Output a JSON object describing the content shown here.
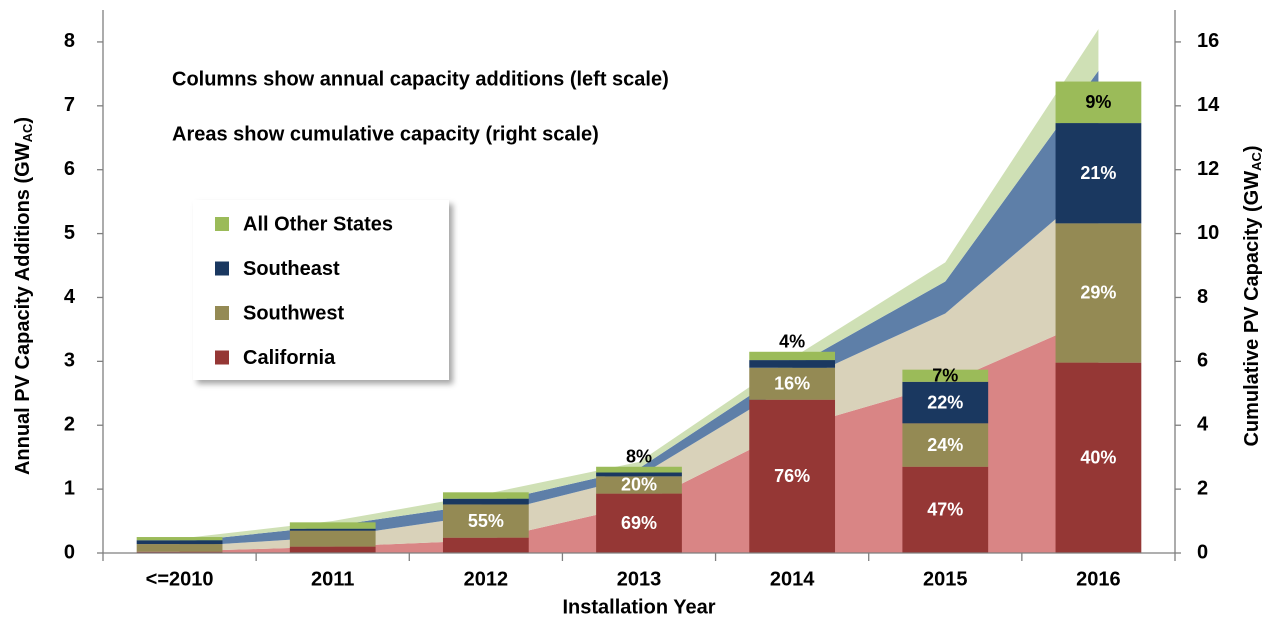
{
  "chart_data": {
    "type": "bar",
    "annotations": [
      "Columns show annual capacity additions (left scale)",
      "Areas show cumulative capacity (right scale)"
    ],
    "xlabel": "Installation Year",
    "ylabel": [
      "Annual PV Capacity Additions (GW",
      "AC",
      ")"
    ],
    "y2label": [
      "Cumulative PV Capacity (GW",
      "AC",
      ")"
    ],
    "categories": [
      "<=2010",
      "2011",
      "2012",
      "2013",
      "2014",
      "2015",
      "2016"
    ],
    "ylim": [
      0,
      8.5
    ],
    "yticks": [
      0,
      1,
      2,
      3,
      4,
      5,
      6,
      7,
      8
    ],
    "y2lim": [
      0,
      17
    ],
    "y2ticks": [
      0,
      2,
      4,
      6,
      8,
      10,
      12,
      14,
      16
    ],
    "legend": "left",
    "series": [
      {
        "name": "California",
        "color": "#953735",
        "area_color": "#d98585",
        "values": [
          0.02,
          0.1,
          0.24,
          0.93,
          2.4,
          1.35,
          2.98
        ],
        "share_labels": [
          null,
          null,
          null,
          "69%",
          "76%",
          "47%",
          "40%"
        ],
        "cumulative": [
          0.05,
          0.2,
          0.4,
          1.5,
          3.9,
          5.3,
          7.4
        ]
      },
      {
        "name": "Southwest",
        "color": "#948a54",
        "area_color": "#d9d2ba",
        "values": [
          0.12,
          0.25,
          0.52,
          0.27,
          0.5,
          0.68,
          2.18
        ],
        "share_labels": [
          null,
          null,
          "55%",
          "20%",
          "16%",
          "24%",
          "29%"
        ],
        "cumulative": [
          0.15,
          0.3,
          0.8,
          0.9,
          1.4,
          2.2,
          4.2
        ]
      },
      {
        "name": "Southeast",
        "color": "#1a3860",
        "area_color": "#5e7fa8",
        "values": [
          0.06,
          0.03,
          0.09,
          0.06,
          0.12,
          0.65,
          1.57
        ],
        "share_labels": [
          null,
          null,
          null,
          null,
          null,
          "22%",
          "21%"
        ],
        "cumulative": [
          0.15,
          0.35,
          0.35,
          0.25,
          0.5,
          1.0,
          3.5
        ]
      },
      {
        "name": "All Other States",
        "color": "#9bbb59",
        "area_color": "#cfe0b5",
        "values": [
          0.05,
          0.1,
          0.1,
          0.09,
          0.13,
          0.19,
          0.65
        ],
        "share_labels": [
          null,
          null,
          null,
          "8%",
          "4%",
          "7%",
          "9%"
        ],
        "cumulative": [
          0.1,
          0.15,
          0.3,
          0.2,
          0.3,
          0.6,
          1.3
        ]
      }
    ]
  }
}
